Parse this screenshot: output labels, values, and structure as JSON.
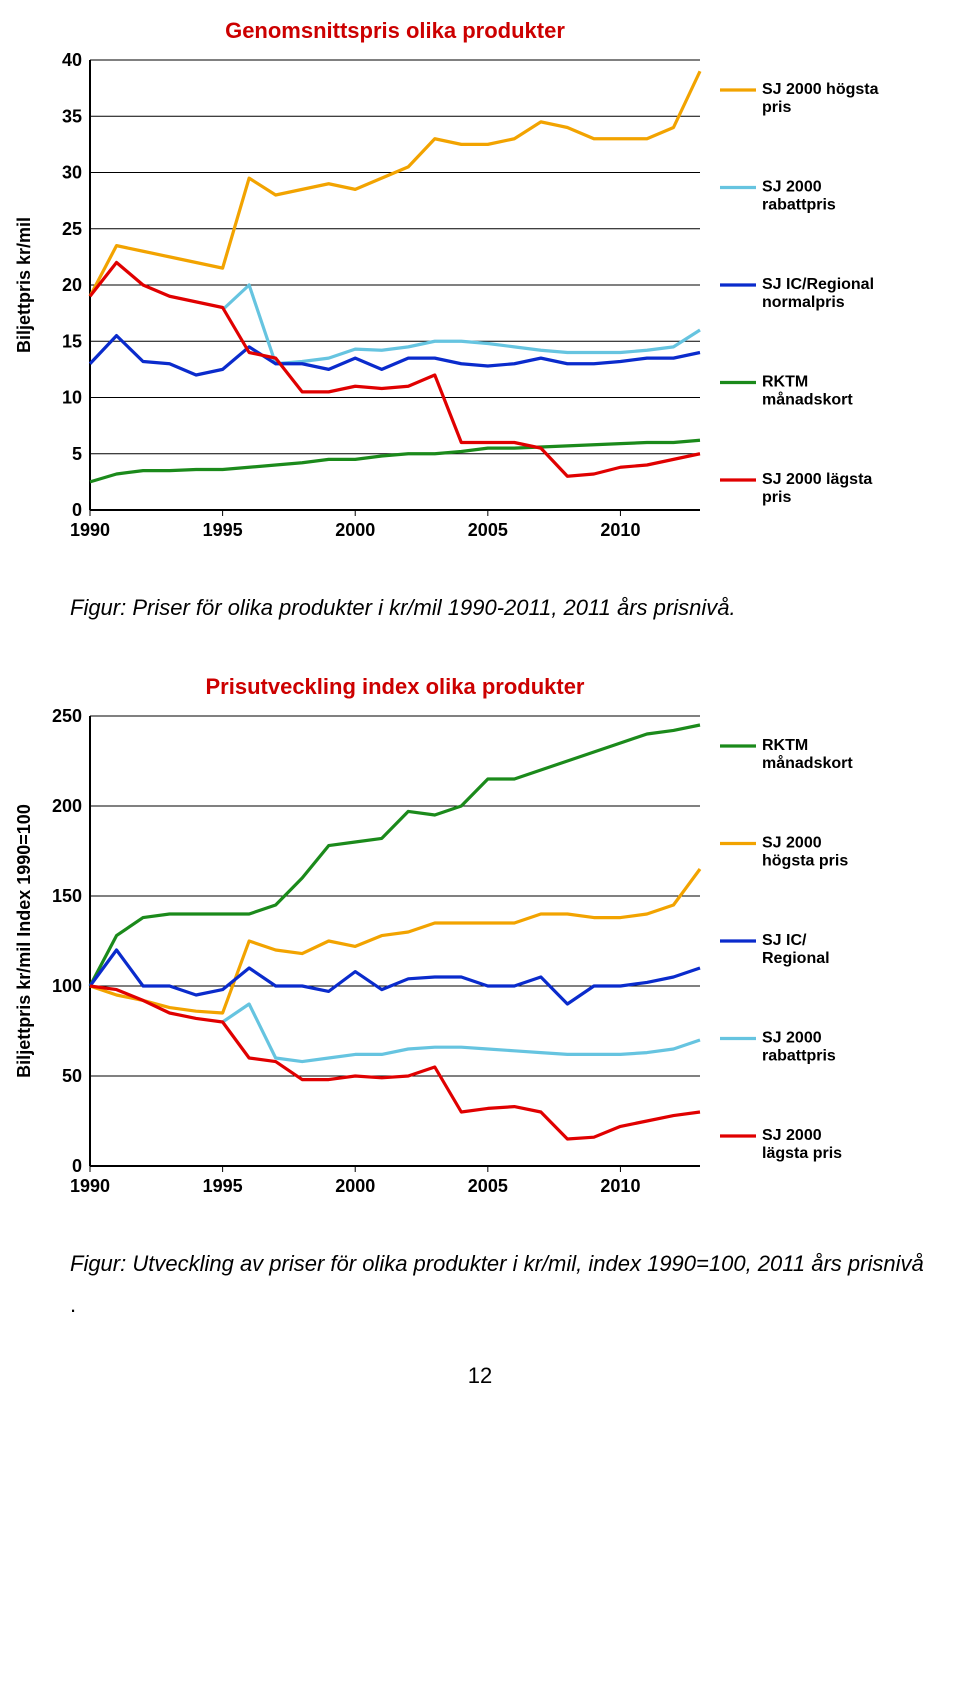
{
  "pageNumber": "12",
  "chart1": {
    "type": "line",
    "title": "Genomsnittspris olika produkter",
    "title_color": "#cc0000",
    "title_fontsize": 22,
    "xlabel": "",
    "ylabel": "Biljettpris  kr/mil",
    "label_fontsize": 18,
    "xlim": [
      1990,
      2013
    ],
    "ylim": [
      0,
      40
    ],
    "ytick_step": 5,
    "xtick_step": 5,
    "xticks": [
      1990,
      1995,
      2000,
      2005,
      2010
    ],
    "yticks": [
      0,
      5,
      10,
      15,
      20,
      25,
      30,
      35,
      40
    ],
    "background_color": "#ffffff",
    "grid_color": "#000000",
    "line_width": 3.2,
    "axis_fontsize": 18,
    "legend_fontsize": 16,
    "series": [
      {
        "name": "SJ 2000 högsta pris",
        "name2": "pris",
        "color": "#f2a300",
        "y": [
          19,
          23.5,
          23,
          22.5,
          22,
          21.5,
          29.5,
          28,
          28.5,
          29,
          28.5,
          29.5,
          30.5,
          33,
          32.5,
          32.5,
          33,
          34.5,
          34,
          33,
          33,
          33,
          34,
          39
        ]
      },
      {
        "name": "SJ 2000 rabattpris",
        "name2": "rabattpris",
        "color": "#66c4e0",
        "y": [
          null,
          null,
          null,
          null,
          null,
          17.8,
          20,
          13,
          13.2,
          13.5,
          14.3,
          14.2,
          14.5,
          15,
          15,
          14.8,
          14.5,
          14.2,
          14,
          14,
          14,
          14.2,
          14.5,
          16
        ]
      },
      {
        "name": "SJ IC/Regional normalpris",
        "name2": "normalpris",
        "color": "#0a2bcc",
        "y": [
          13,
          15.5,
          13.2,
          13,
          12,
          12.5,
          14.5,
          13,
          13,
          12.5,
          13.5,
          12.5,
          13.5,
          13.5,
          13,
          12.8,
          13,
          13.5,
          13,
          13,
          13.2,
          13.5,
          13.5,
          14
        ]
      },
      {
        "name": "RKTM månadskort",
        "name2": "månadskort",
        "color": "#1b8a1b",
        "y": [
          2.5,
          3.2,
          3.5,
          3.5,
          3.6,
          3.6,
          3.8,
          4,
          4.2,
          4.5,
          4.5,
          4.8,
          5,
          5,
          5.2,
          5.5,
          5.5,
          5.6,
          5.7,
          5.8,
          5.9,
          6,
          6,
          6.2
        ]
      },
      {
        "name": "SJ 2000 lägsta pris",
        "name2": "pris",
        "color": "#e00000",
        "y": [
          19,
          22,
          20,
          19,
          18.5,
          18,
          14,
          13.5,
          10.5,
          10.5,
          11,
          10.8,
          11,
          12,
          6,
          6,
          6,
          5.5,
          3,
          3.2,
          3.8,
          4,
          4.5,
          5
        ]
      }
    ],
    "caption": "Figur: Priser för olika produkter i kr/mil 1990-2011, 2011 års prisnivå."
  },
  "chart2": {
    "type": "line",
    "title": "Prisutveckling index olika produkter",
    "title_color": "#cc0000",
    "title_fontsize": 22,
    "ylabel": "Biljettpris kr/mil Index 1990=100",
    "label_fontsize": 18,
    "xlim": [
      1990,
      2013
    ],
    "ylim": [
      0,
      250
    ],
    "ytick_step": 50,
    "xtick_step": 5,
    "xticks": [
      1990,
      1995,
      2000,
      2005,
      2010
    ],
    "yticks": [
      0,
      50,
      100,
      150,
      200,
      250
    ],
    "background_color": "#ffffff",
    "grid_color": "#000000",
    "line_width": 3.2,
    "axis_fontsize": 18,
    "legend_fontsize": 16,
    "series": [
      {
        "name": "RKTM månadskort",
        "name2": "månadskort",
        "color": "#1b8a1b",
        "y": [
          100,
          128,
          138,
          140,
          140,
          140,
          140,
          145,
          160,
          178,
          180,
          182,
          197,
          195,
          200,
          215,
          215,
          220,
          225,
          230,
          235,
          240,
          242,
          245
        ]
      },
      {
        "name": "SJ 2000 högsta pris",
        "name2": "högsta pris",
        "color": "#f2a300",
        "y": [
          100,
          95,
          92,
          88,
          86,
          85,
          125,
          120,
          118,
          125,
          122,
          128,
          130,
          135,
          135,
          135,
          135,
          140,
          140,
          138,
          138,
          140,
          145,
          165
        ]
      },
      {
        "name": "SJ IC/ Regional",
        "name2": "Regional",
        "color": "#0a2bcc",
        "y": [
          100,
          120,
          100,
          100,
          95,
          98,
          110,
          100,
          100,
          97,
          108,
          98,
          104,
          105,
          105,
          100,
          100,
          105,
          90,
          100,
          100,
          102,
          105,
          110
        ]
      },
      {
        "name": "SJ 2000 rabattpris",
        "name2": "rabattpris",
        "color": "#66c4e0",
        "y": [
          null,
          null,
          null,
          null,
          null,
          80,
          90,
          60,
          58,
          60,
          62,
          62,
          65,
          66,
          66,
          65,
          64,
          63,
          62,
          62,
          62,
          63,
          65,
          70
        ]
      },
      {
        "name": "SJ 2000 lägsta pris",
        "name2": "lägsta pris",
        "color": "#e00000",
        "y": [
          100,
          98,
          92,
          85,
          82,
          80,
          60,
          58,
          48,
          48,
          50,
          49,
          50,
          55,
          30,
          32,
          33,
          30,
          15,
          16,
          22,
          25,
          28,
          30
        ]
      }
    ],
    "caption": "Figur: Utveckling av priser för olika produkter i kr/mil, index 1990=100, 2011 års prisnivå"
  }
}
